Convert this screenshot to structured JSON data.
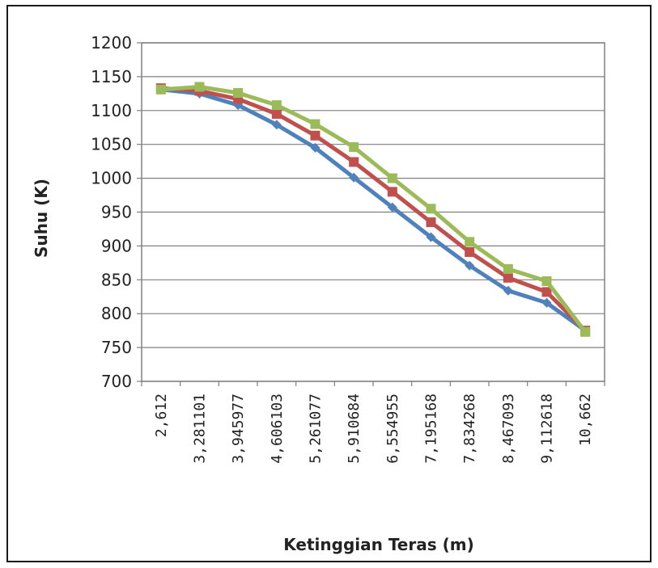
{
  "chart_data": {
    "type": "line",
    "title": "",
    "xlabel": "Ketinggian Teras (m)",
    "ylabel": "Suhu (K)",
    "ylim": [
      700,
      1200
    ],
    "yticks": [
      700,
      750,
      800,
      850,
      900,
      950,
      1000,
      1050,
      1100,
      1150,
      1200
    ],
    "categories": [
      "2,612",
      "3,281101",
      "3,945977",
      "4,606103",
      "5,261077",
      "5,910684",
      "6,554955",
      "7,195168",
      "7,834268",
      "8,467093",
      "9,112618",
      "10,662"
    ],
    "grid": true,
    "legend": "none",
    "series": [
      {
        "color": "#4f81bd",
        "marker": "diamond",
        "values": [
          1131,
          1125,
          1108,
          1079,
          1045,
          1001,
          957,
          913,
          871,
          834,
          816,
          775
        ]
      },
      {
        "color": "#c0504d",
        "marker": "square",
        "values": [
          1133,
          1129,
          1117,
          1095,
          1063,
          1024,
          980,
          935,
          891,
          853,
          832,
          775
        ]
      },
      {
        "color": "#9bbb59",
        "marker": "square",
        "values": [
          1131,
          1135,
          1126,
          1108,
          1080,
          1046,
          1000,
          955,
          906,
          866,
          848,
          773
        ]
      }
    ]
  }
}
